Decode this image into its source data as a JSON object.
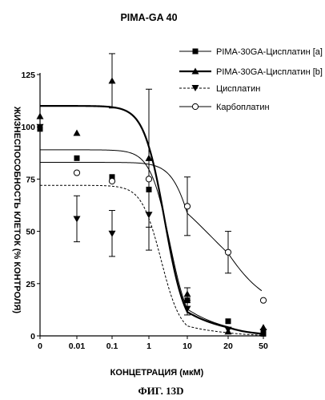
{
  "chart_data": {
    "type": "line",
    "title": "PIMA-GA 40",
    "caption": "ФИГ. 13D",
    "xlabel": "КОНЦЕТРАЦИЯ (мкМ)",
    "ylabel": "ЖИЗНЕСПОСОБНОСТЬ КЛЕТОК (% КОНТРОЛЯ)",
    "categories": [
      "0",
      "0.01",
      "0.1",
      "1",
      "10",
      "20",
      "50"
    ],
    "ylim": [
      0,
      125
    ],
    "yticks": [
      "0",
      "25",
      "50",
      "75",
      "100",
      "125"
    ],
    "grid": false,
    "legend_position": "top-right",
    "series": [
      {
        "name": "PIMA-30GA-Цисплатин [a]",
        "marker": "square-filled",
        "line": "solid-thin",
        "points": [
          {
            "x": 0,
            "y": 99,
            "err": 0
          },
          {
            "x": 0.01,
            "y": 85,
            "err": 0
          },
          {
            "x": 0.1,
            "y": 76,
            "err": 0
          },
          {
            "x": 1,
            "y": 70,
            "err": 0
          },
          {
            "x": 10,
            "y": 17,
            "err": 0
          },
          {
            "x": 20,
            "y": 7,
            "err": 0
          },
          {
            "x": 50,
            "y": 1,
            "err": 0
          }
        ],
        "curve": {
          "top": 89,
          "bottom": 0,
          "ec50": 3.5,
          "hill": 1.7
        }
      },
      {
        "name": "PIMA-30GA-Цисплатин [b]",
        "marker": "triangle-up-filled",
        "line": "solid-thick",
        "points": [
          {
            "x": 0,
            "y": 105,
            "err": 0
          },
          {
            "x": 0.01,
            "y": 97,
            "err": 0
          },
          {
            "x": 0.1,
            "y": 122,
            "err": 13
          },
          {
            "x": 1,
            "y": 85,
            "err": 33
          },
          {
            "x": 10,
            "y": 20,
            "err": 3
          },
          {
            "x": 20,
            "y": 2,
            "err": 0
          },
          {
            "x": 50,
            "y": 4,
            "err": 0
          }
        ],
        "curve": {
          "top": 110,
          "bottom": 0,
          "ec50": 2.6,
          "hill": 1.6
        }
      },
      {
        "name": "Цисплатин",
        "marker": "triangle-down-filled",
        "line": "dashed",
        "points": [
          {
            "x": 0,
            "y": 100,
            "err": 0
          },
          {
            "x": 0.01,
            "y": 56,
            "err": 11
          },
          {
            "x": 0.1,
            "y": 49,
            "err": 11
          },
          {
            "x": 1,
            "y": 58,
            "err": 17
          },
          {
            "x": 10,
            "y": 13,
            "err": 3
          },
          {
            "x": 20,
            "y": 3,
            "err": 0
          },
          {
            "x": 50,
            "y": 2,
            "err": 0
          }
        ],
        "curve": {
          "top": 72,
          "bottom": 0,
          "ec50": 2.1,
          "hill": 1.7
        }
      },
      {
        "name": "Карбоплатин",
        "marker": "circle-open",
        "line": "solid-thin",
        "points": [
          {
            "x": 0.01,
            "y": 78,
            "err": 0
          },
          {
            "x": 0.1,
            "y": 74,
            "err": 0
          },
          {
            "x": 1,
            "y": 75,
            "err": 0
          },
          {
            "x": 10,
            "y": 62,
            "err": 14
          },
          {
            "x": 20,
            "y": 40,
            "err": 10
          },
          {
            "x": 50,
            "y": 17,
            "err": 0
          }
        ],
        "curve": {
          "top": 83,
          "bottom": 12,
          "ec50": 15,
          "hill": 1.6
        }
      }
    ]
  }
}
